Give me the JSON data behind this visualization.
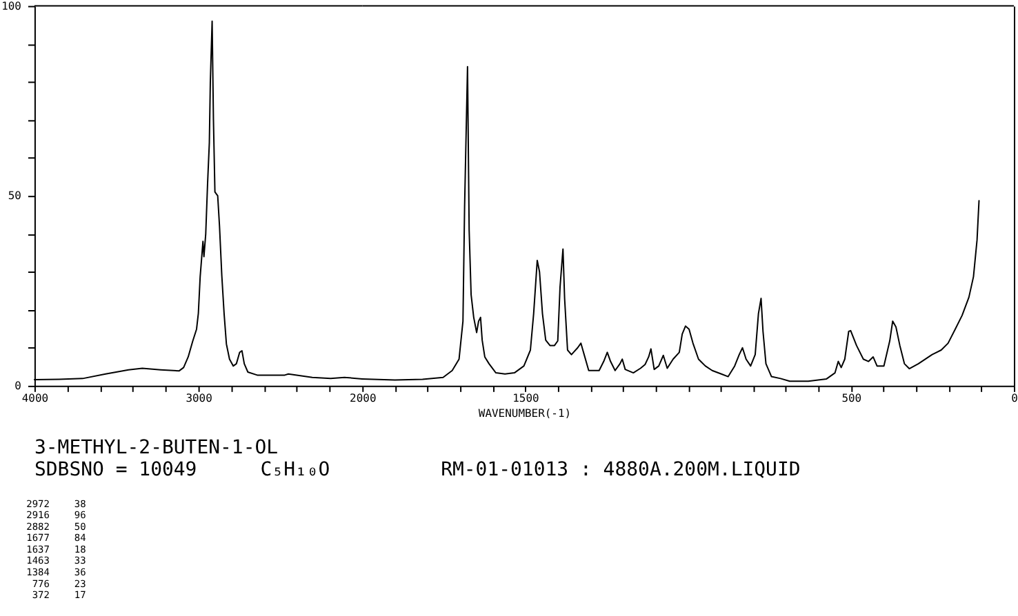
{
  "chart_data": [
    {
      "type": "line",
      "title": "3-METHYL-2-BUTEN-1-OL",
      "annotations": [
        "SDBSNO = 10049",
        "C₅H₁₀O",
        "RM-01-01013 : 4880A.200M.LIQUID",
        "2972 38",
        "2916 96",
        "2882 50",
        "1677 84",
        "1637 18",
        "1463 33",
        "1384 36",
        "776 23",
        "372 17"
      ],
      "x": [
        4000,
        3850,
        3706,
        3566,
        3426,
        3342,
        3230,
        3118,
        3090,
        3062,
        3034,
        3011,
        3000,
        2989,
        2972,
        2966,
        2955,
        2944,
        2933,
        2927,
        2916,
        2908,
        2899,
        2882,
        2871,
        2857,
        2843,
        2829,
        2810,
        2787,
        2768,
        2748,
        2734,
        2720,
        2698,
        2641,
        2473,
        2451,
        2305,
        2193,
        2109,
        2000
      ],
      "series": [
        {
          "color": "#000000",
          "values": [
            1.6,
            1.7,
            1.9,
            3.1,
            4.2,
            4.6,
            4.2,
            3.9,
            4.8,
            7.6,
            11.8,
            14.9,
            19.1,
            28.7,
            38,
            34,
            40,
            53,
            64,
            80,
            96,
            70,
            51,
            50,
            42,
            29,
            19,
            11,
            7,
            5.2,
            5.8,
            8.8,
            9.2,
            5.8,
            3.6,
            2.8,
            2.8,
            3.1,
            2.2,
            1.9,
            2.2,
            1.8
          ]
        }
      ],
      "xlim": [
        4000,
        2000
      ],
      "xticks": [
        4000,
        {
          "value": 3800,
          "label": null
        },
        {
          "value": 3600,
          "label": null
        },
        {
          "value": 3400,
          "label": null
        },
        {
          "value": 3200,
          "label": null
        },
        3000,
        {
          "value": 2800,
          "label": null
        },
        {
          "value": 2600,
          "label": null
        },
        {
          "value": 2400,
          "label": null
        },
        {
          "value": 2200,
          "label": null
        },
        2000
      ],
      "ylim": [
        0,
        100
      ],
      "yticks": [
        0,
        {
          "value": 10,
          "label": null
        },
        {
          "value": 20,
          "label": null
        },
        {
          "value": 30,
          "label": null
        },
        {
          "value": 40,
          "label": null
        },
        50,
        {
          "value": 60,
          "label": null
        },
        {
          "value": 70,
          "label": null
        },
        {
          "value": 80,
          "label": null
        },
        {
          "value": 90,
          "label": null
        },
        100
      ],
      "line_style": "solid"
    },
    {
      "type": "line",
      "xlabel": "WAVENUMBER(-1)",
      "x": [
        2000,
        1900,
        1815,
        1752,
        1724,
        1703,
        1691,
        1686,
        1677,
        1672,
        1666,
        1658,
        1649,
        1643,
        1637,
        1632,
        1624,
        1611,
        1590,
        1562,
        1533,
        1504,
        1484,
        1474,
        1463,
        1456,
        1447,
        1437,
        1424,
        1410,
        1400,
        1393,
        1384,
        1379,
        1370,
        1358,
        1339,
        1329,
        1319,
        1305,
        1273,
        1259,
        1248,
        1238,
        1224,
        1209,
        1202,
        1193,
        1168,
        1146,
        1132,
        1121,
        1114,
        1104,
        1090,
        1076,
        1064,
        1046,
        1027,
        1018,
        1008,
        997,
        985,
        968,
        947,
        926,
        898,
        877,
        857,
        843,
        833,
        822,
        808,
        794,
        784,
        776,
        770,
        761,
        744,
        716,
        688,
        631,
        575,
        549,
        539,
        530,
        519,
        507,
        501,
        483,
        462,
        446,
        432,
        420,
        399,
        381,
        372,
        362,
        350,
        336,
        321,
        293,
        251,
        223,
        202,
        180,
        159,
        138,
        124,
        113,
        107
      ],
      "series": [
        {
          "color": "#000000",
          "values": [
            1.8,
            1.5,
            1.7,
            2.2,
            4,
            7,
            17,
            47,
            84,
            41,
            24,
            18,
            14,
            17,
            18,
            12,
            7.6,
            5.8,
            3.4,
            3.1,
            3.4,
            5.2,
            9.4,
            19,
            33,
            30,
            19,
            12,
            10.6,
            10.6,
            11.8,
            26,
            36,
            23,
            9.4,
            8.2,
            10,
            11.2,
            8.2,
            4,
            4,
            6.4,
            8.8,
            6.4,
            4,
            5.8,
            7,
            4.3,
            3.4,
            4.6,
            5.6,
            7.6,
            9.7,
            4.3,
            5.2,
            8,
            4.6,
            7,
            8.8,
            13.6,
            15.7,
            14.9,
            11.2,
            7,
            5.2,
            4,
            3.1,
            2.4,
            5.2,
            8.2,
            10,
            7,
            5.2,
            8.2,
            19,
            23,
            14.3,
            5.8,
            2.4,
            1.9,
            1.2,
            1.2,
            1.8,
            3.4,
            6.4,
            4.8,
            7,
            14.3,
            14.5,
            10.6,
            7,
            6.4,
            7.6,
            5.2,
            5.2,
            11.8,
            17,
            15.5,
            10.6,
            5.8,
            4.5,
            5.8,
            8.2,
            9.4,
            11.2,
            14.9,
            18.5,
            23.3,
            28.7,
            38.4,
            48.7
          ]
        }
      ],
      "xlim": [
        2000,
        0
      ],
      "xticks": [
        {
          "value": 1900,
          "label": null
        },
        {
          "value": 1800,
          "label": null
        },
        {
          "value": 1700,
          "label": null
        },
        {
          "value": 1600,
          "label": null
        },
        1500,
        {
          "value": 1400,
          "label": null
        },
        {
          "value": 1300,
          "label": null
        },
        {
          "value": 1200,
          "label": null
        },
        {
          "value": 1100,
          "label": null
        },
        {
          "value": 1000,
          "label": null
        },
        {
          "value": 900,
          "label": null
        },
        {
          "value": 800,
          "label": null
        },
        {
          "value": 700,
          "label": null
        },
        {
          "value": 600,
          "label": null
        },
        500,
        {
          "value": 400,
          "label": null
        },
        {
          "value": 300,
          "label": null
        },
        {
          "value": 200,
          "label": null
        },
        {
          "value": 100,
          "label": null
        },
        0
      ],
      "ylim": [
        0,
        100
      ],
      "tick_labels": "x",
      "line_style": "solid"
    }
  ]
}
